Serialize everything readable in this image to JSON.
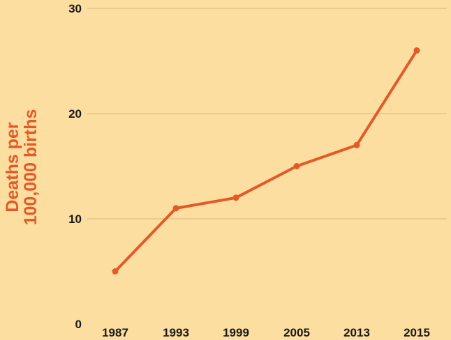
{
  "chart_data": {
    "type": "line",
    "title": "",
    "xlabel": "",
    "ylabel_lines": [
      "Deaths per",
      "100,000 births"
    ],
    "categories": [
      "1987",
      "1993",
      "1999",
      "2005",
      "2013",
      "2015"
    ],
    "series": [
      {
        "values": [
          5,
          11,
          12,
          15,
          17,
          26
        ]
      }
    ],
    "ylim": [
      0,
      30
    ],
    "yticks": [
      "0",
      "10",
      "20",
      "30"
    ],
    "grid": true,
    "legend": "none"
  },
  "colors": {
    "background": "#fbdea0",
    "line": "#e35a28",
    "gridline": "#d9b57c",
    "ylabel": "#e35a28",
    "tick_text": "#1a1a1a"
  }
}
